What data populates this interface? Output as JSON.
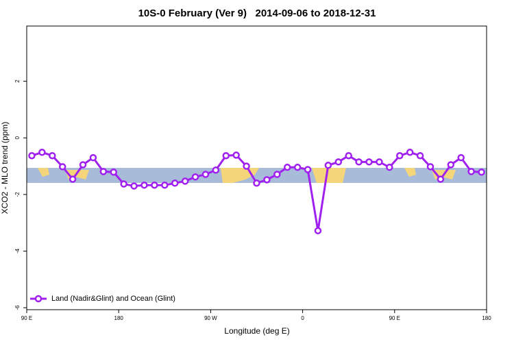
{
  "chart_data": {
    "type": "line",
    "title": "10S-0 February (Ver 9)   2014-09-06 to 2018-12-31",
    "x_label": "Longitude (deg E)",
    "y_label": "XCO2 - MLO trend (ppm)",
    "x": [
      95,
      105,
      115,
      125,
      135,
      145,
      155,
      165,
      175,
      185,
      195,
      205,
      215,
      225,
      235,
      245,
      255,
      265,
      275,
      285,
      295,
      305,
      315,
      325,
      335,
      345,
      355,
      365,
      375,
      385,
      395,
      405,
      415,
      425,
      435,
      445,
      455,
      465,
      475,
      485,
      495,
      505,
      515,
      525,
      535
    ],
    "series": [
      {
        "name": "Land (Nadir&Glint) and Ocean (Glint)",
        "color": "#a020f0",
        "values": [
          -0.63,
          -0.51,
          -0.63,
          -1.02,
          -1.46,
          -0.95,
          -0.7,
          -1.19,
          -1.21,
          -1.63,
          -1.7,
          -1.67,
          -1.67,
          -1.67,
          -1.6,
          -1.53,
          -1.38,
          -1.29,
          -1.14,
          -0.63,
          -0.61,
          -1.0,
          -1.6,
          -1.48,
          -1.29,
          -1.04,
          -1.04,
          -1.12,
          -3.28,
          -0.97,
          -0.85,
          -0.63,
          -0.85,
          -0.85,
          -0.85,
          -1.04,
          -0.63,
          -0.51,
          -0.63,
          -1.02,
          -1.46,
          -0.95,
          -0.7,
          -1.19,
          -1.21
        ]
      }
    ],
    "xlim": [
      90,
      540
    ],
    "xticks": [
      {
        "value": 90,
        "label": "90 E"
      },
      {
        "value": 180,
        "label": "180"
      },
      {
        "value": 270,
        "label": "90 W"
      },
      {
        "value": 360,
        "label": "0"
      },
      {
        "value": 450,
        "label": "90 E"
      },
      {
        "value": 540,
        "label": "180"
      }
    ],
    "ylim": [
      -6.07,
      3.95
    ],
    "yticks": [
      -6,
      -4,
      -2,
      0,
      2
    ],
    "legend": "bottom-left"
  }
}
